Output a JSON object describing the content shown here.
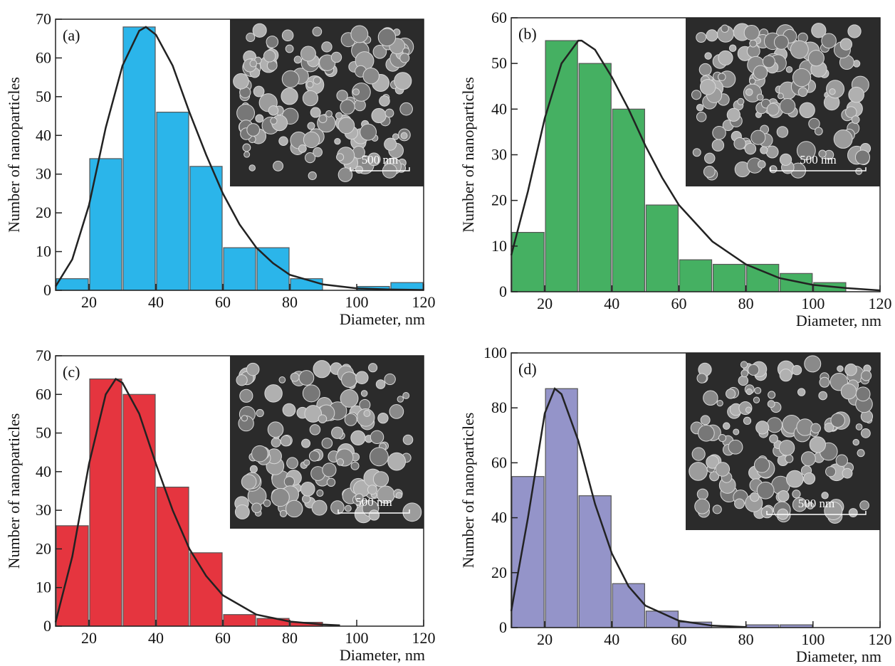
{
  "chart_data": [
    {
      "type": "histogram",
      "panel_label": "(a)",
      "ylabel": "Number of nanoparticles",
      "xlabel": "Diameter, nm",
      "scale_bar": "500 nm",
      "bins": [
        10,
        20,
        30,
        40,
        50,
        60,
        70,
        80,
        90,
        100,
        110,
        120
      ],
      "values": [
        3,
        34,
        68,
        46,
        32,
        11,
        11,
        3,
        0,
        1,
        2
      ],
      "color": "#2bb5ea",
      "curve": {
        "x": [
          10,
          15,
          20,
          25,
          30,
          35,
          37,
          40,
          45,
          50,
          55,
          60,
          65,
          70,
          75,
          80,
          90,
          100,
          110,
          120
        ],
        "y": [
          1,
          8,
          22,
          42,
          58,
          67,
          68,
          66,
          58,
          46,
          35,
          25,
          17,
          11,
          7,
          4,
          1.5,
          0.5,
          0.2,
          0.1
        ]
      },
      "xlim": [
        10,
        120
      ],
      "xticks": [
        20,
        40,
        60,
        80,
        100,
        120
      ],
      "ylim": [
        0,
        70
      ],
      "yticks": [
        0,
        10,
        20,
        30,
        40,
        50,
        60,
        70
      ]
    },
    {
      "type": "histogram",
      "panel_label": "(b)",
      "ylabel": "Number of nanoparticles",
      "xlabel": "Diameter, nm",
      "scale_bar": "500 nm",
      "bins": [
        10,
        20,
        30,
        40,
        50,
        60,
        70,
        80,
        90,
        100,
        110,
        120
      ],
      "values": [
        13,
        55,
        50,
        40,
        19,
        7,
        6,
        6,
        4,
        2,
        0
      ],
      "color": "#45b062",
      "curve": {
        "x": [
          10,
          15,
          20,
          25,
          30,
          31,
          35,
          40,
          45,
          50,
          55,
          60,
          70,
          80,
          90,
          100,
          110,
          120
        ],
        "y": [
          8,
          22,
          38,
          50,
          55,
          55,
          53,
          47,
          40,
          32,
          25,
          19,
          11,
          6,
          3,
          1.5,
          0.8,
          0.3
        ]
      },
      "xlim": [
        10,
        120
      ],
      "xticks": [
        20,
        40,
        60,
        80,
        100,
        120
      ],
      "ylim": [
        0,
        60
      ],
      "yticks": [
        0,
        10,
        20,
        30,
        40,
        50,
        60
      ]
    },
    {
      "type": "histogram",
      "panel_label": "(c)",
      "ylabel": "Number of nanoparticles",
      "xlabel": "Diameter, nm",
      "scale_bar": "500 nm",
      "bins": [
        10,
        20,
        30,
        40,
        50,
        60,
        70,
        80,
        90,
        100,
        110,
        120
      ],
      "values": [
        26,
        64,
        60,
        36,
        19,
        3,
        2,
        1,
        0,
        0,
        0
      ],
      "color": "#e5353f",
      "curve": {
        "x": [
          10,
          15,
          20,
          25,
          28,
          30,
          35,
          40,
          45,
          50,
          55,
          60,
          70,
          80,
          90,
          95
        ],
        "y": [
          1,
          18,
          42,
          60,
          64,
          63,
          55,
          42,
          30,
          20,
          13,
          8,
          3,
          1.2,
          0.4,
          0.2
        ]
      },
      "xlim": [
        10,
        120
      ],
      "xticks": [
        20,
        40,
        60,
        80,
        100,
        120
      ],
      "ylim": [
        0,
        70
      ],
      "yticks": [
        0,
        10,
        20,
        30,
        40,
        50,
        60,
        70
      ]
    },
    {
      "type": "histogram",
      "panel_label": "(d)",
      "ylabel": "Number of nanoparticles",
      "xlabel": "Diameter, nm",
      "scale_bar": "500 nm",
      "bins": [
        10,
        20,
        30,
        40,
        50,
        60,
        70,
        80,
        90,
        100,
        110,
        120
      ],
      "values": [
        55,
        87,
        48,
        16,
        6,
        2,
        0,
        1,
        1,
        0,
        0
      ],
      "color": "#9494c9",
      "curve": {
        "x": [
          10,
          15,
          20,
          23,
          25,
          30,
          35,
          40,
          45,
          50,
          60,
          70,
          80
        ],
        "y": [
          6,
          40,
          78,
          87,
          85,
          68,
          45,
          27,
          15,
          8,
          2.5,
          0.7,
          0.2
        ]
      },
      "xlim": [
        10,
        120
      ],
      "xticks": [
        20,
        40,
        60,
        80,
        100,
        120
      ],
      "ylim": [
        0,
        100
      ],
      "yticks": [
        0,
        20,
        40,
        60,
        80,
        100
      ]
    }
  ]
}
